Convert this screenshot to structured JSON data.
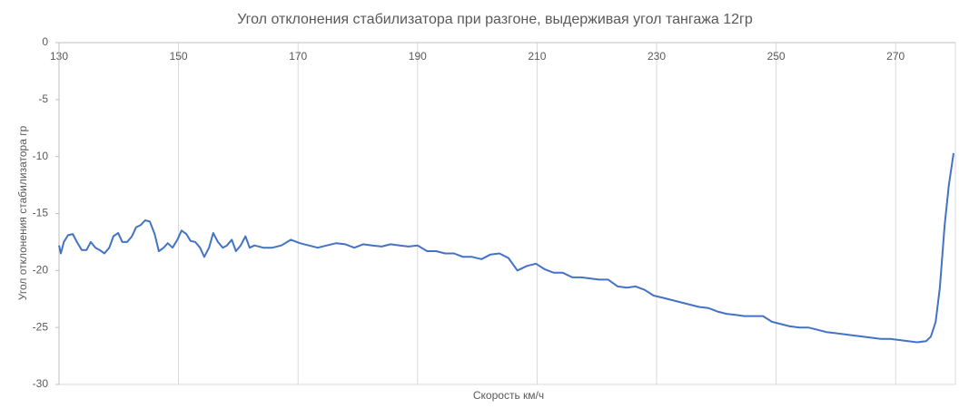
{
  "chart_data": {
    "type": "line",
    "title": "Угол отклонения стабилизатора при разгоне, выдерживая угол тангажа 12гр",
    "x_label": "Скорость км/ч",
    "y_label": "Угол отклонения  стабилизатора гр",
    "xlim": [
      130,
      280
    ],
    "ylim": [
      -30,
      0
    ],
    "xticks": [
      130,
      150,
      170,
      190,
      210,
      230,
      250,
      270
    ],
    "yticks": [
      0,
      -5,
      -10,
      -15,
      -20,
      -25,
      -30
    ],
    "grid": true,
    "series": [
      {
        "color": "#4472c4",
        "x": [
          130,
          130.3,
          130.8,
          131.5,
          132.3,
          133.0,
          133.8,
          134.6,
          135.3,
          136.1,
          136.8,
          137.6,
          138.4,
          139.1,
          139.9,
          140.6,
          141.4,
          142.2,
          142.9,
          143.7,
          144.4,
          145.2,
          146.0,
          146.7,
          147.5,
          148.2,
          149.0,
          149.8,
          150.5,
          151.3,
          152.0,
          152.8,
          153.6,
          154.3,
          155.1,
          155.8,
          156.6,
          157.4,
          158.1,
          158.9,
          159.6,
          160.4,
          161.2,
          161.9,
          162.7,
          164.2,
          165.7,
          167.2,
          168.8,
          170.3,
          171.8,
          173.3,
          174.8,
          176.4,
          177.9,
          179.4,
          180.9,
          182.4,
          184.0,
          185.5,
          187.0,
          188.5,
          190.0,
          191.6,
          193.1,
          194.6,
          196.1,
          197.6,
          199.1,
          200.7,
          202.2,
          203.7,
          205.2,
          206.7,
          208.3,
          209.8,
          211.3,
          212.8,
          214.3,
          215.9,
          217.4,
          218.9,
          220.4,
          221.9,
          223.5,
          225.0,
          226.5,
          228.0,
          229.5,
          231.1,
          232.6,
          234.1,
          235.6,
          237.1,
          238.7,
          240.2,
          241.7,
          243.2,
          244.7,
          246.3,
          247.8,
          249.3,
          250.8,
          252.3,
          253.9,
          255.4,
          256.9,
          258.4,
          259.9,
          261.5,
          263.0,
          264.5,
          266.0,
          267.5,
          269.1,
          270.6,
          272.1,
          273.6,
          275.1,
          275.9,
          276.7,
          277.4,
          278.2,
          278.9,
          279.7
        ],
        "values": [
          -17.8,
          -18.5,
          -17.5,
          -16.9,
          -16.8,
          -17.5,
          -18.2,
          -18.2,
          -17.5,
          -18.0,
          -18.2,
          -18.5,
          -18.0,
          -17.0,
          -16.7,
          -17.5,
          -17.5,
          -17.0,
          -16.2,
          -16.0,
          -15.6,
          -15.7,
          -16.8,
          -18.3,
          -18.0,
          -17.6,
          -18.0,
          -17.3,
          -16.5,
          -16.8,
          -17.4,
          -17.5,
          -18.0,
          -18.8,
          -18.0,
          -16.7,
          -17.5,
          -18.0,
          -17.8,
          -17.3,
          -18.3,
          -17.8,
          -17.0,
          -18.0,
          -17.8,
          -18.0,
          -18.0,
          -17.8,
          -17.3,
          -17.6,
          -17.8,
          -18.0,
          -17.8,
          -17.6,
          -17.7,
          -18.0,
          -17.7,
          -17.8,
          -17.9,
          -17.7,
          -17.8,
          -17.9,
          -17.8,
          -18.3,
          -18.3,
          -18.5,
          -18.5,
          -18.8,
          -18.8,
          -19.0,
          -18.6,
          -18.5,
          -18.9,
          -20.0,
          -19.6,
          -19.4,
          -19.9,
          -20.2,
          -20.2,
          -20.6,
          -20.6,
          -20.7,
          -20.8,
          -20.8,
          -21.4,
          -21.5,
          -21.4,
          -21.7,
          -22.2,
          -22.4,
          -22.6,
          -22.8,
          -23.0,
          -23.2,
          -23.3,
          -23.6,
          -23.8,
          -23.9,
          -24.0,
          -24.0,
          -24.0,
          -24.5,
          -24.7,
          -24.9,
          -25.0,
          -25.0,
          -25.2,
          -25.4,
          -25.5,
          -25.6,
          -25.7,
          -25.8,
          -25.9,
          -26.0,
          -26.0,
          -26.1,
          -26.2,
          -26.3,
          -26.2,
          -25.8,
          -24.5,
          -21.5,
          -16.0,
          -12.5,
          -9.7
        ]
      }
    ]
  }
}
